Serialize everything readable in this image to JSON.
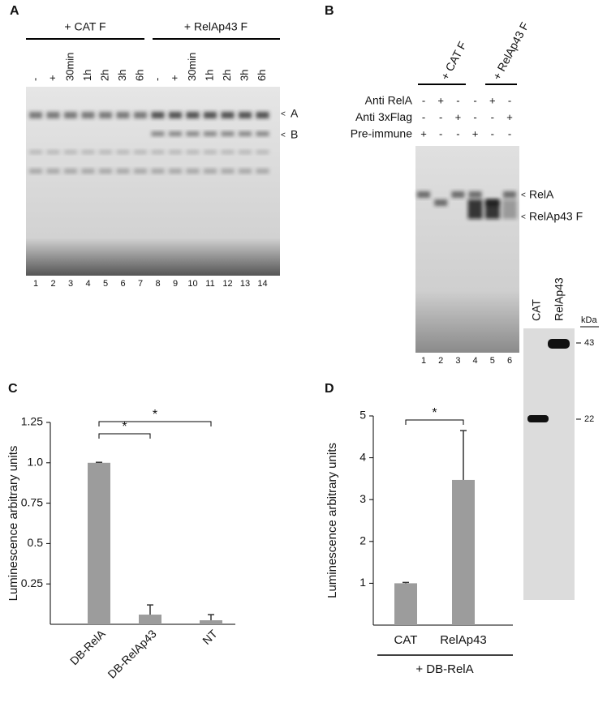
{
  "panels": {
    "a": "A",
    "b": "B",
    "c": "C",
    "d": "D"
  },
  "gel_a": {
    "groups": [
      "+ CAT F",
      "+ RelAp43 F"
    ],
    "lanes": [
      "-",
      "+",
      "30min",
      "1h",
      "2h",
      "3h",
      "6h",
      "-",
      "+",
      "30min",
      "1h",
      "2h",
      "3h",
      "6h"
    ],
    "lane_numbers": [
      1,
      2,
      3,
      4,
      5,
      6,
      7,
      8,
      9,
      10,
      11,
      12,
      13,
      14
    ],
    "bands": [
      "A",
      "B"
    ]
  },
  "gel_b": {
    "groups": [
      "+ CAT F",
      "+ RelAp43 F"
    ],
    "rows": [
      {
        "label": "Anti RelA",
        "marks": [
          "-",
          "+",
          "-",
          "-",
          "+",
          "-"
        ]
      },
      {
        "label": "Anti 3xFlag",
        "marks": [
          "-",
          "-",
          "+",
          "-",
          "-",
          "+"
        ]
      },
      {
        "label": "Pre-immune",
        "marks": [
          "+",
          "-",
          "-",
          "+",
          "-",
          "-"
        ]
      }
    ],
    "lane_numbers": [
      1,
      2,
      3,
      4,
      5,
      6
    ],
    "bands": [
      "RelA",
      "RelAp43 F"
    ]
  },
  "western_d": {
    "lanes": [
      "CAT",
      "RelAp43"
    ],
    "unit": "kDa",
    "markers": [
      43,
      22
    ]
  },
  "chart_data": [
    {
      "type": "bar",
      "ylabel": "Luminescence arbitrary units",
      "categories": [
        "DB-RelA",
        "DB-RelAp43",
        "NT"
      ],
      "values": [
        1.0,
        0.06,
        0.025
      ],
      "errors": [
        0.003,
        0.06,
        0.035
      ],
      "color": "#9c9c9c",
      "ylim": [
        0,
        1.25
      ],
      "yticks": [
        0.25,
        0.5,
        0.75,
        {
          "value": 1,
          "label": "1.0"
        },
        1.25
      ],
      "annotations": [
        "*",
        "*"
      ]
    },
    {
      "type": "bar",
      "ylabel": "Luminescence arbitrary units",
      "xlabel": "+ DB-RelA",
      "categories": [
        "CAT",
        "RelAp43"
      ],
      "values": [
        1.0,
        3.47
      ],
      "errors": [
        0.02,
        1.18
      ],
      "color": "#9c9c9c",
      "ylim": [
        0,
        5
      ],
      "yticks": [
        1,
        2,
        3,
        4,
        5
      ],
      "annotations": [
        "*"
      ]
    }
  ]
}
